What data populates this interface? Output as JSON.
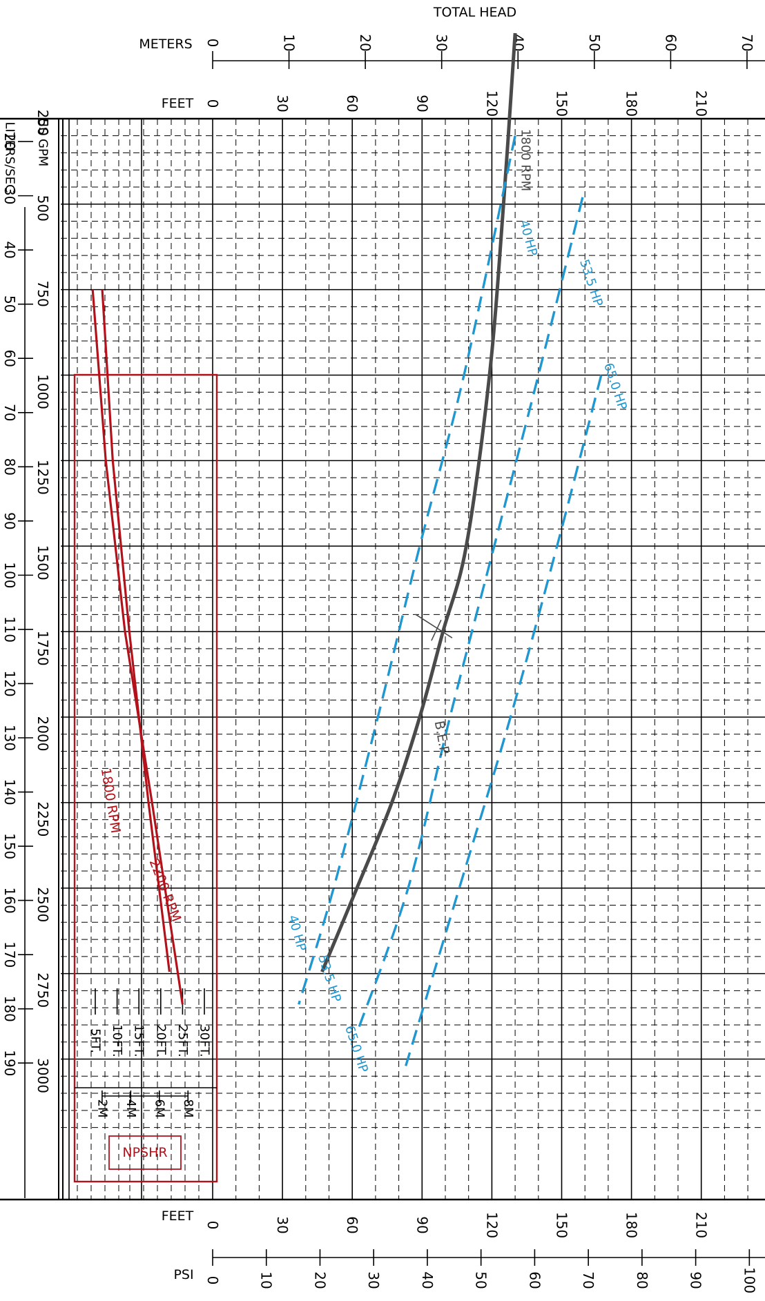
{
  "chart_data": {
    "type": "line",
    "title": "TOTAL HEAD",
    "x_axes": {
      "feet_top": {
        "label": "FEET",
        "ticks": [
          0,
          30,
          60,
          90,
          120,
          150,
          180,
          210
        ]
      },
      "meters": {
        "label": "METERS",
        "ticks": [
          0,
          10,
          20,
          30,
          40,
          50,
          60,
          70
        ]
      },
      "feet_bottom": {
        "label": "FEET",
        "ticks": [
          0,
          30,
          60,
          90,
          120,
          150,
          180,
          210
        ]
      },
      "psi": {
        "label": "PSI",
        "ticks": [
          0,
          10,
          20,
          30,
          40,
          50,
          60,
          70,
          80,
          90,
          100
        ]
      },
      "xlim_feet": [
        0,
        235
      ]
    },
    "y_axes": {
      "gpm": {
        "label": "US GPM",
        "ticks": [
          250,
          500,
          750,
          1000,
          1250,
          1500,
          1750,
          2000,
          2250,
          2500,
          2750,
          3000
        ]
      },
      "lps": {
        "label": "LITERS/SEC",
        "ticks": [
          20,
          30,
          40,
          50,
          60,
          70,
          80,
          90,
          100,
          110,
          120,
          130,
          140,
          150,
          160,
          170,
          180,
          190
        ]
      },
      "ylim_gpm": [
        0,
        3170
      ]
    },
    "series": [
      {
        "name": "1800 RPM",
        "style": "solid",
        "color": "#4a4a4a",
        "points": [
          [
            130,
            0
          ],
          [
            125,
            500
          ],
          [
            119,
            1000
          ],
          [
            109,
            1500
          ],
          [
            99,
            1750
          ],
          [
            89,
            2000
          ],
          [
            77,
            2250
          ],
          [
            62,
            2500
          ],
          [
            47,
            2745
          ]
        ],
        "label": "1800 RPM"
      },
      {
        "name": "40 HP",
        "style": "dashed",
        "color": "#1f97d0",
        "points": [
          [
            130,
            300
          ],
          [
            108,
            1000
          ],
          [
            89,
            1500
          ],
          [
            71,
            2000
          ],
          [
            52,
            2500
          ],
          [
            37,
            2840
          ]
        ],
        "label": "40 HP",
        "label2": "40 HP"
      },
      {
        "name": "53.5 HP",
        "style": "dashed",
        "color": "#1f97d0",
        "points": [
          [
            159,
            480
          ],
          [
            140,
            1000
          ],
          [
            121,
            1500
          ],
          [
            102,
            2000
          ],
          [
            84,
            2500
          ],
          [
            63,
            2905
          ]
        ],
        "label": "53.5 HP",
        "label2": "53.5 HP"
      },
      {
        "name": "65.0 HP",
        "style": "dashed",
        "color": "#1f97d0",
        "points": [
          [
            167,
            1000
          ],
          [
            148,
            1500
          ],
          [
            128,
            2000
          ],
          [
            106,
            2500
          ],
          [
            83,
            3020
          ]
        ],
        "label": "65.0 HP",
        "label2": "65.0 HP"
      }
    ],
    "bep": {
      "label": "B.E.P.",
      "feet": 97,
      "gpm": 1740
    },
    "npshr": {
      "label": "NPSHR",
      "ticks_feet": [
        "5FT.",
        "10FT.",
        "15FT.",
        "20FT.",
        "25FT.",
        "30FT."
      ],
      "ticks_meters": [
        "2M",
        "4M",
        "6M",
        "8M"
      ],
      "series": [
        {
          "name": "1800 RPM",
          "points": [
            [
              6.6,
              750
            ],
            [
              9.0,
              1250
            ],
            [
              12.8,
              1750
            ],
            [
              17.2,
              2250
            ],
            [
              22.0,
              2745
            ]
          ],
          "label": "1800 RPM"
        },
        {
          "name": "2200 RPM",
          "points": [
            [
              4.4,
              750
            ],
            [
              7.4,
              1250
            ],
            [
              11.8,
              1750
            ],
            [
              18.0,
              2250
            ],
            [
              25.0,
              2840
            ]
          ],
          "label": "2200 RPM"
        }
      ]
    },
    "colors": {
      "grid": "#000000",
      "head_curve": "#4a4a4a",
      "hp_curves": "#1f97d0",
      "npshr": "#b3121b"
    },
    "grid": true
  }
}
